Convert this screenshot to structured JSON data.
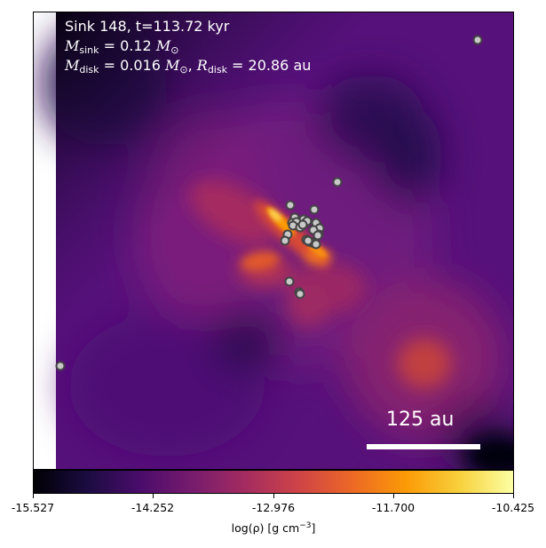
{
  "info": {
    "line1": "Sink 148, t=113.72 kyr",
    "mass_symbol": "M",
    "mass_sub": "sink",
    "mass_value": " = 0.12 ",
    "mass_unit": "M",
    "mass_unit_sub": "⊙",
    "disk_symbol": "M",
    "disk_sub": "disk",
    "disk_value": " = 0.016 ",
    "disk_unit": "M",
    "disk_unit_sub": "⊙",
    "radius_symbol": "R",
    "radius_sub": "disk",
    "radius_value": " = 20.86 au"
  },
  "scale_bar": {
    "label": "125 au"
  },
  "colorbar": {
    "ticks": [
      "-15.527",
      "-14.252",
      "-12.976",
      "-11.700",
      "-10.425"
    ],
    "label_prefix": "log(ρ) [g cm",
    "label_exp": "−3",
    "label_suffix": "]",
    "colormap": "inferno",
    "colors": [
      "#000004",
      "#1b0c41",
      "#4a0c6b",
      "#781c6d",
      "#a52c60",
      "#cf4446",
      "#ed6925",
      "#fb9b06",
      "#f7d13d",
      "#fcffa4"
    ]
  },
  "sink_markers": {
    "count": 31,
    "marker_color": "#c8c8c8",
    "edge_color": "#444444"
  }
}
